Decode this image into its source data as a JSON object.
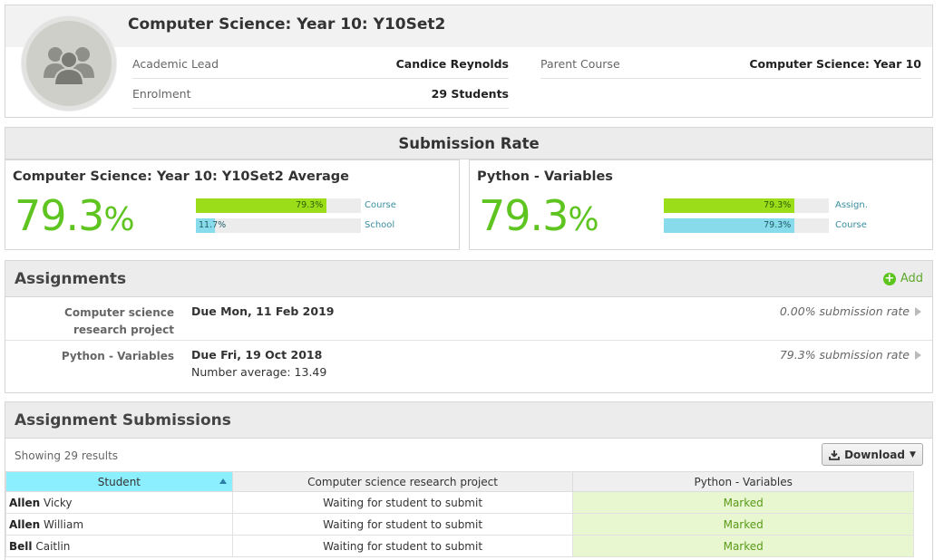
{
  "course": {
    "title": "Computer Science: Year 10: Y10Set2",
    "academic_lead_label": "Academic Lead",
    "academic_lead_value": "Candice Reynolds",
    "enrolment_label": "Enrolment",
    "enrolment_value": "29 Students",
    "parent_course_label": "Parent Course",
    "parent_course_value": "Computer Science: Year 10"
  },
  "submission_rate": {
    "title": "Submission Rate",
    "left": {
      "label": "Computer Science: Year 10: Y10Set2 Average",
      "value": "79.3",
      "unit": "%",
      "bars": [
        {
          "text": "79.3%",
          "fraction": 0.793,
          "color": "green",
          "label": "Course"
        },
        {
          "text": "11.7%",
          "fraction": 0.117,
          "color": "blue",
          "label": "School"
        }
      ]
    },
    "right": {
      "label": "Python - Variables",
      "value": "79.3",
      "unit": "%",
      "bars": [
        {
          "text": "79.3%",
          "fraction": 0.793,
          "color": "green",
          "label": "Assign."
        },
        {
          "text": "79.3%",
          "fraction": 0.793,
          "color": "blue",
          "label": "Course"
        }
      ]
    }
  },
  "assignments": {
    "title": "Assignments",
    "add_label": "Add",
    "items": [
      {
        "name": "Computer science research project",
        "due": "Due Mon, 11 Feb 2019",
        "average": "",
        "rate": "0.00% submission rate"
      },
      {
        "name": "Python - Variables",
        "due": "Due Fri, 19 Oct 2018",
        "average": "Number average: 13.49",
        "rate": "79.3% submission rate"
      }
    ]
  },
  "submissions": {
    "title": "Assignment Submissions",
    "showing": "Showing 29 results",
    "download_label": "Download",
    "columns": [
      "Student",
      "Computer science research project",
      "Python - Variables"
    ],
    "rows": [
      {
        "surname": "Allen",
        "first": "Vicky",
        "c1": "Waiting for student to submit",
        "c2": "Marked"
      },
      {
        "surname": "Allen",
        "first": "William",
        "c1": "Waiting for student to submit",
        "c2": "Marked"
      },
      {
        "surname": "Bell",
        "first": "Caitlin",
        "c1": "Waiting for student to submit",
        "c2": "Marked"
      }
    ]
  },
  "colors": {
    "accent_green": "#5ec41f",
    "bar_green": "#9cdd1a",
    "bar_blue": "#88dbea",
    "sorted_header": "#8cefff"
  }
}
